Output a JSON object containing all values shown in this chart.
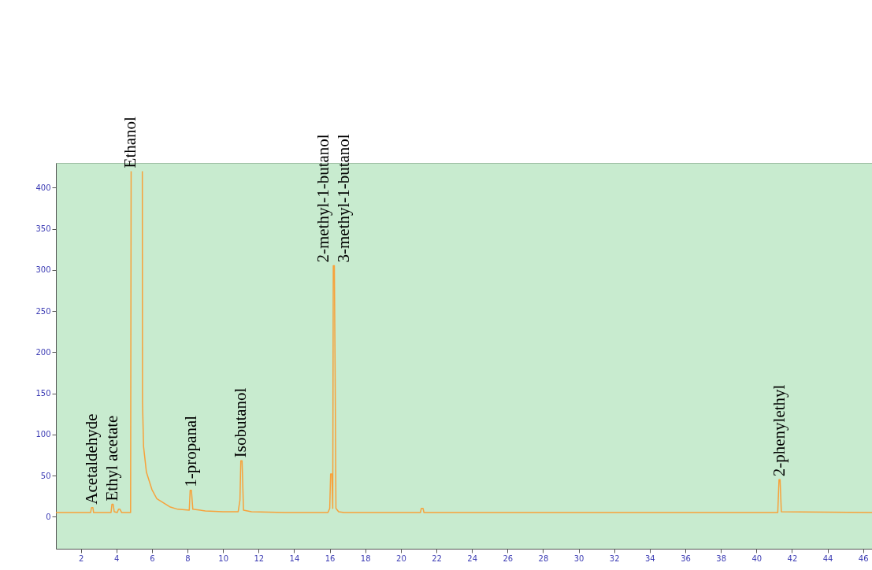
{
  "chart_data": {
    "type": "line",
    "x": [
      0.6,
      2.55,
      2.6,
      2.68,
      2.72,
      3.7,
      3.75,
      3.82,
      3.88,
      4.05,
      4.12,
      4.2,
      4.3,
      4.8,
      4.83,
      4.85,
      5.45,
      5.46,
      5.47,
      5.53,
      5.69,
      6.0,
      6.27,
      7.0,
      7.45,
      8.1,
      8.15,
      8.22,
      8.3,
      9.0,
      10.0,
      10.85,
      10.95,
      11.0,
      11.07,
      11.15,
      11.6,
      13.5,
      15.9,
      16.0,
      16.05,
      16.12,
      16.17,
      16.2,
      16.26,
      16.3,
      16.35,
      16.5,
      16.8,
      21.1,
      21.15,
      21.25,
      21.3,
      41.2,
      41.27,
      41.33,
      41.4,
      46.5
    ],
    "series": [
      {
        "color": "#f7a23b",
        "values": [
          5,
          5,
          11,
          11,
          5,
          5,
          15,
          15,
          6,
          5,
          9,
          9,
          5,
          5,
          420,
          null,
          null,
          420,
          139,
          85,
          54,
          33,
          22,
          12,
          9,
          8,
          32,
          32,
          9,
          7,
          6,
          6,
          20,
          68,
          68,
          8,
          6,
          5,
          5,
          10,
          52,
          52,
          10,
          305,
          305,
          185,
          10,
          6,
          5,
          5,
          10,
          10,
          5,
          5,
          45,
          45,
          6,
          5
        ]
      }
    ],
    "xlim": [
      0.6,
      46.5
    ],
    "xticks": [
      2,
      4,
      6,
      8,
      10,
      12,
      14,
      16,
      18,
      20,
      22,
      24,
      26,
      28,
      30,
      32,
      34,
      36,
      38,
      40,
      42,
      44,
      46
    ],
    "ylim": [
      -39,
      430
    ],
    "yticks": [
      0,
      50,
      100,
      150,
      200,
      250,
      300,
      350,
      400
    ],
    "grid": false,
    "marker": "none",
    "line_style": "solid",
    "annotations": [
      {
        "text": "Acetaldehyde",
        "x": 2.65,
        "y": 11
      },
      {
        "text": "Ethyl acetate",
        "x": 3.8,
        "y": 15
      },
      {
        "text": "Ethanol",
        "x": 4.83,
        "y": 420
      },
      {
        "text": "1-propanal",
        "x": 8.2,
        "y": 32
      },
      {
        "text": "Isobutanol",
        "x": 11.0,
        "y": 68
      },
      {
        "text": "2-methyl-1-butanol",
        "x": 16.2,
        "y": 305
      },
      {
        "text": "3-methyl-1-butanol",
        "x": 16.2,
        "y": 305
      },
      {
        "text": "2-phenylethyl",
        "x": 41.3,
        "y": 45
      }
    ]
  }
}
